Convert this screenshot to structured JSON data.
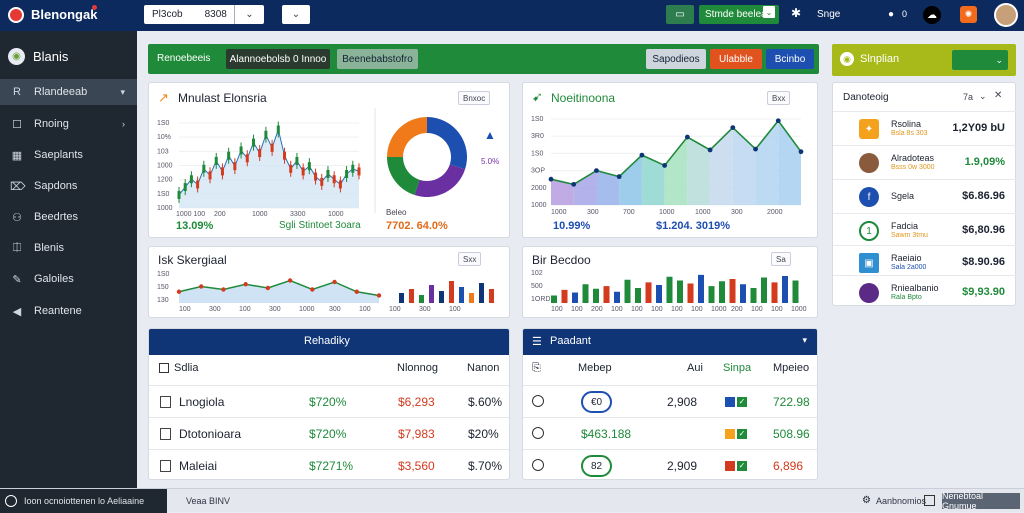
{
  "topbar": {
    "brand": "Blenongak",
    "select1_value": "Pl3cob",
    "select1_value2": "8308",
    "green_btn": "Stmde beelea",
    "user_label": "Snge",
    "counter": "0"
  },
  "sidebar": {
    "title": "Blanis",
    "items": [
      {
        "label": "Rlandeeab",
        "icon": "R"
      },
      {
        "label": "Rnoing",
        "icon": "☐"
      },
      {
        "label": "Saeplants",
        "icon": "▦"
      },
      {
        "label": "Sapdons",
        "icon": "⌦"
      },
      {
        "label": "Beedrtes",
        "icon": "⚇"
      },
      {
        "label": "Blenis",
        "icon": "⎅"
      },
      {
        "label": "Galoiles",
        "icon": "✎"
      },
      {
        "label": "Reantene",
        "icon": "◀"
      }
    ]
  },
  "header": {
    "title": "Renoebeeis",
    "tab1": "Alannoebolsb 0 Innoo",
    "tab2": "Beenebabstofro",
    "btn1": "Sapodieos",
    "btn2": "Ulabble",
    "btn3": "Bcinbo"
  },
  "cards": {
    "c1": {
      "title": "Mnulast Elonsria",
      "pill": "Bnxoc",
      "kpi1": "13.09%",
      "kpi2": "Sgli Stintoet 3oara",
      "kpi3": "7702. 64.0%",
      "pie_label": "Beleo",
      "yticks": [
        "1S0",
        "10%",
        "103",
        "1000",
        "1200",
        "1S0",
        "1000"
      ],
      "xticks": [
        "1000 100",
        "200",
        "1000",
        "3300",
        "1000"
      ],
      "pie_legend": "5.0%"
    },
    "c2": {
      "title": "Noeitinoona",
      "pill": "Bxx",
      "yticks": [
        "1S0",
        "3R0",
        "1S0",
        "3OP",
        "2000",
        "1000"
      ],
      "xticks": [
        "1000",
        "300",
        "700",
        "1000",
        "1000",
        "300",
        "2000"
      ],
      "kpi1": "10.99%",
      "kpi2": "$1.204. 3019%"
    },
    "c3": {
      "title": "Isk Skergiaal",
      "pill": "Sxx",
      "yticks": [
        "1S0",
        "150",
        "130"
      ],
      "xticks": [
        "100",
        "300",
        "100",
        "300",
        "1000",
        "300",
        "100",
        "100",
        "300",
        "100"
      ]
    },
    "c4": {
      "title": "Bir Becdoo",
      "pill": "Sa",
      "yticks": [
        "102",
        "500",
        "1ORD"
      ],
      "xticks": [
        "100",
        "100",
        "200",
        "100",
        "100",
        "100",
        "100",
        "100",
        "1000",
        "200",
        "100",
        "100",
        "1000"
      ]
    }
  },
  "right_panel": {
    "title": "Slnplian",
    "list_title": "Danoteoig",
    "list_pill": "7a",
    "items": [
      {
        "name": "Rsolina",
        "sub": "Bsla 8s 303",
        "value": "1,2Y09 bU"
      },
      {
        "name": "Alradoteas",
        "sub": "Bsss 0w 3000",
        "value": "1.9,09%"
      },
      {
        "name": "Sgela",
        "sub": "",
        "value": "$6.86.96"
      },
      {
        "name": "Fadcia",
        "sub": "Sawm 3tmu",
        "value": "$6,80.96"
      },
      {
        "name": "Raeiaio",
        "sub": "Sala 2a000",
        "value": "$8.90.96"
      },
      {
        "name": "Rniealbanio",
        "sub": "Rala Bpto",
        "value": "$9,93.90"
      }
    ]
  },
  "table1": {
    "title": "Rehadiky",
    "cols": [
      "Sdlia",
      "Nlonnog",
      "Nanon"
    ],
    "rows": [
      {
        "name": "Lnogiola",
        "v1": "$720%",
        "v2": "$6,293",
        "v3": "$.60%"
      },
      {
        "name": "Dtotonioara",
        "v1": "$720%",
        "v2": "$7,983",
        "v3": "$20%"
      },
      {
        "name": "Maleiai",
        "v1": "$7271%",
        "v2": "$3,560",
        "v3": "$.70%"
      }
    ]
  },
  "table2": {
    "title": "Paadant",
    "cols": [
      "Mebep",
      "Aui",
      "Sinpa",
      "Mpeieo"
    ],
    "rows": [
      {
        "badge": "€0",
        "v1": "2,908",
        "v2": "722.98"
      },
      {
        "badge": "$463.188",
        "v1": "",
        "v2": "508.96"
      },
      {
        "badge": "82",
        "v1": "2,909",
        "v2": "6,896"
      }
    ]
  },
  "footer": {
    "status": "Ioon ocnoiottenen lo Aeliaaine",
    "mid": "Veaa BINV",
    "right1": "Aanbnomios",
    "right2": "Nenebtoal Gnumue"
  },
  "chart_data": [
    {
      "type": "line",
      "title": "Mnulast Elonsria",
      "x": [
        1,
        2,
        3,
        4,
        5,
        6,
        7,
        8,
        9,
        10,
        11,
        12,
        13,
        14,
        15,
        16,
        17,
        18,
        19,
        20,
        21,
        22,
        23,
        24,
        25,
        26,
        27,
        28,
        29,
        30
      ],
      "series": [
        {
          "values": [
            40,
            46,
            52,
            48,
            60,
            55,
            66,
            58,
            70,
            62,
            74,
            68,
            80,
            72,
            86,
            76,
            90,
            70,
            60,
            66,
            58,
            62,
            54,
            50,
            56,
            52,
            48,
            56,
            60,
            58
          ]
        }
      ]
    },
    {
      "type": "pie",
      "values": [
        30,
        25,
        20,
        25
      ]
    },
    {
      "type": "area",
      "title": "Noeitinoona",
      "x": [
        1,
        2,
        3,
        4,
        5,
        6,
        7,
        8,
        9,
        10,
        11,
        12
      ],
      "series": [
        {
          "values": [
            30,
            24,
            40,
            33,
            58,
            46,
            79,
            64,
            90,
            65,
            98,
            62
          ]
        }
      ]
    },
    {
      "type": "line",
      "title": "Isk Skergiaal",
      "x": [
        1,
        2,
        3,
        4,
        5,
        6,
        7,
        8,
        9,
        10
      ],
      "series": [
        {
          "values": [
            45,
            52,
            48,
            55,
            50,
            60,
            48,
            58,
            45,
            40
          ]
        }
      ]
    },
    {
      "type": "bar",
      "title": "Bir Becdoo",
      "categories": [
        "1",
        "2",
        "3",
        "4",
        "5",
        "6",
        "7",
        "8",
        "9",
        "10",
        "11",
        "12",
        "13",
        "14",
        "15",
        "16",
        "17",
        "18",
        "19",
        "20",
        "21",
        "22",
        "23",
        "24"
      ],
      "values": [
        20,
        35,
        28,
        50,
        38,
        45,
        30,
        62,
        40,
        55,
        48,
        70,
        60,
        52,
        75,
        45,
        58,
        64,
        50,
        40,
        68,
        55,
        72,
        60
      ]
    }
  ]
}
